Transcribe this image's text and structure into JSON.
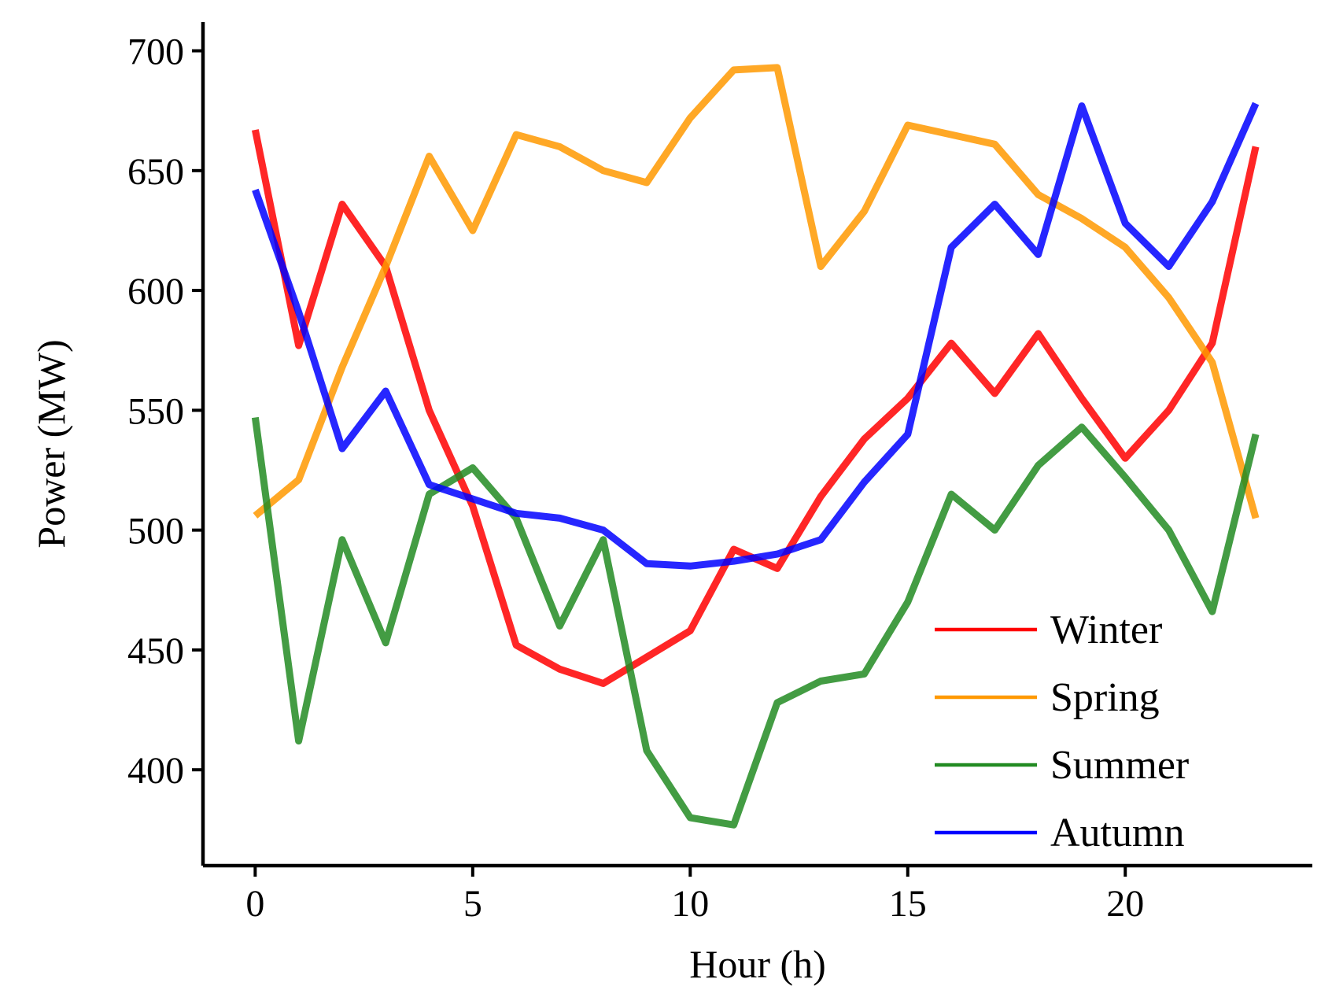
{
  "chart_data": {
    "type": "line",
    "title": "",
    "xlabel": "Hour (h)",
    "ylabel": "Power (MW)",
    "xlim": [
      -1.2,
      24.3
    ],
    "ylim": [
      360,
      712
    ],
    "xticks": [
      0,
      5,
      10,
      15,
      20
    ],
    "yticks": [
      400,
      450,
      500,
      550,
      600,
      650,
      700
    ],
    "xtick_labels": [
      "0",
      "5",
      "10",
      "15",
      "20"
    ],
    "ytick_labels": [
      "400",
      "450",
      "500",
      "550",
      "600",
      "650",
      "700"
    ],
    "grid": false,
    "legend_position": "lower-right",
    "x": [
      0,
      1,
      2,
      3,
      4,
      5,
      6,
      7,
      8,
      9,
      10,
      11,
      12,
      13,
      14,
      15,
      16,
      17,
      18,
      19,
      20,
      21,
      22,
      23
    ],
    "series": [
      {
        "name": "Winter",
        "color": "#ff0000",
        "values": [
          667,
          577,
          636,
          610,
          550,
          510,
          452,
          442,
          436,
          447,
          458,
          492,
          484,
          514,
          538,
          555,
          578,
          557,
          582,
          555,
          530,
          550,
          578,
          660
        ]
      },
      {
        "name": "Spring",
        "color": "#ff9900",
        "values": [
          506,
          521,
          568,
          610,
          656,
          625,
          665,
          660,
          650,
          645,
          672,
          692,
          693,
          610,
          633,
          669,
          665,
          661,
          640,
          630,
          618,
          597,
          570,
          505
        ]
      },
      {
        "name": "Summer",
        "color": "#228b22",
        "values": [
          547,
          412,
          496,
          453,
          515,
          526,
          505,
          460,
          496,
          408,
          380,
          377,
          428,
          437,
          440,
          470,
          515,
          500,
          527,
          543,
          522,
          500,
          466,
          540
        ]
      },
      {
        "name": "Autumn",
        "color": "#0000ff",
        "values": [
          642,
          591,
          534,
          558,
          519,
          513,
          507,
          505,
          500,
          486,
          485,
          487,
          490,
          496,
          520,
          540,
          618,
          636,
          615,
          677,
          628,
          610,
          637,
          678
        ]
      }
    ]
  }
}
